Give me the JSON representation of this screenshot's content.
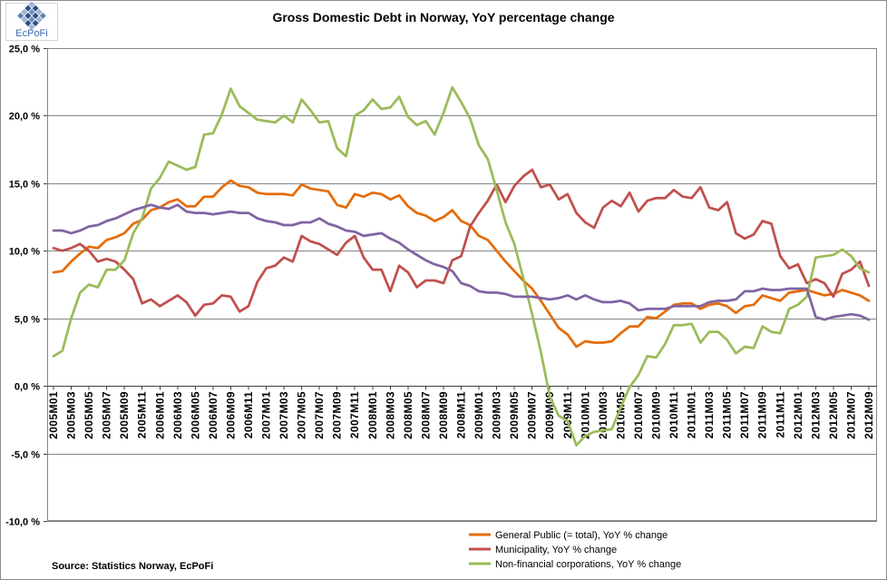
{
  "logo": {
    "text": "EcPoFi"
  },
  "source": "Source: Statistics Norway, EcPoFi",
  "chart_data": {
    "type": "line",
    "title": "Gross Domestic Debt in Norway, YoY percentage change",
    "ylim": [
      -10,
      25
    ],
    "y_step": 5,
    "y_tick_labels": [
      "25,0 %",
      "20,0 %",
      "15,0 %",
      "10,0 %",
      "5,0 %",
      "0,0 %",
      "-5,0 %",
      "-10,0 %"
    ],
    "months_per_label": 2,
    "x_labels": [
      "2005M01",
      "2005M03",
      "2005M05",
      "2005M07",
      "2005M09",
      "2005M11",
      "2006M01",
      "2006M03",
      "2006M05",
      "2006M07",
      "2006M09",
      "2006M11",
      "2007M01",
      "2007M03",
      "2007M05",
      "2007M07",
      "2007M09",
      "2007M11",
      "2008M01",
      "2008M03",
      "2008M05",
      "2008M07",
      "2008M09",
      "2008M11",
      "2009M01",
      "2009M03",
      "2009M05",
      "2009M07",
      "2009M09",
      "2009M11",
      "2010M01",
      "2010M03",
      "2010M05",
      "2010M07",
      "2010M09",
      "2010M11",
      "2011M01",
      "2011M03",
      "2011M05",
      "2011M07",
      "2011M09",
      "2011M11",
      "2012M01",
      "2012M03",
      "2012M05",
      "2012M07",
      "2012M09"
    ],
    "grid": true,
    "legend_position": "bottom",
    "series": [
      {
        "name": "General Public (= total), YoY % change",
        "color": "#E46C0A",
        "values": [
          8.4,
          8.5,
          9.2,
          9.8,
          10.3,
          10.2,
          10.8,
          11.0,
          11.3,
          12.0,
          12.3,
          13.0,
          13.2,
          13.6,
          13.8,
          13.3,
          13.3,
          14.0,
          14.0,
          14.7,
          15.2,
          14.8,
          14.7,
          14.3,
          14.2,
          14.2,
          14.2,
          14.1,
          14.9,
          14.6,
          14.5,
          14.4,
          13.4,
          13.2,
          14.2,
          14.0,
          14.3,
          14.2,
          13.8,
          14.1,
          13.3,
          12.8,
          12.6,
          12.2,
          12.5,
          13.0,
          12.2,
          11.9,
          11.1,
          10.8,
          10.0,
          9.2,
          8.5,
          7.8,
          7.2,
          6.3,
          5.3,
          4.3,
          3.8,
          2.9,
          3.3,
          3.2,
          3.2,
          3.3,
          3.9,
          4.4,
          4.4,
          5.1,
          5.0,
          5.5,
          6.0,
          6.1,
          6.1,
          5.7,
          6.0,
          6.1,
          5.9,
          5.4,
          5.9,
          6.0,
          6.7,
          6.5,
          6.3,
          6.9,
          7.0,
          7.1,
          6.9,
          6.7,
          6.8,
          7.1,
          6.9,
          6.7,
          6.3
        ]
      },
      {
        "name": "Municipality, YoY % change",
        "color": "#C0504D",
        "values": [
          10.2,
          10.0,
          10.2,
          10.5,
          10.0,
          9.2,
          9.4,
          9.2,
          8.6,
          7.9,
          6.1,
          6.4,
          5.9,
          6.3,
          6.7,
          6.2,
          5.2,
          6.0,
          6.1,
          6.7,
          6.6,
          5.5,
          5.9,
          7.7,
          8.7,
          8.9,
          9.5,
          9.2,
          11.1,
          10.7,
          10.5,
          10.1,
          9.7,
          10.6,
          11.1,
          9.5,
          8.6,
          8.6,
          7.0,
          8.9,
          8.4,
          7.3,
          7.8,
          7.8,
          7.6,
          9.3,
          9.6,
          11.8,
          12.8,
          13.7,
          14.9,
          13.6,
          14.8,
          15.5,
          16.0,
          14.7,
          14.9,
          13.8,
          14.2,
          12.8,
          12.1,
          11.7,
          13.2,
          13.7,
          13.3,
          14.3,
          12.9,
          13.7,
          13.9,
          13.9,
          14.5,
          14.0,
          13.9,
          14.7,
          13.2,
          13.0,
          13.6,
          11.3,
          10.9,
          11.2,
          12.2,
          12.0,
          9.6,
          8.7,
          9.0,
          7.6,
          7.9,
          7.6,
          6.6,
          8.3,
          8.6,
          9.2,
          7.4
        ]
      },
      {
        "name": "Non-financial corporations, YoY % change",
        "color": "#9BBB59",
        "values": [
          2.2,
          2.6,
          5.0,
          6.9,
          7.5,
          7.3,
          8.6,
          8.6,
          9.3,
          11.3,
          12.4,
          14.6,
          15.4,
          16.6,
          16.3,
          16.0,
          16.2,
          18.6,
          18.7,
          20.1,
          22.0,
          20.7,
          20.2,
          19.7,
          19.6,
          19.5,
          20.0,
          19.5,
          21.2,
          20.4,
          19.5,
          19.6,
          17.6,
          17.0,
          20.0,
          20.4,
          21.2,
          20.5,
          20.6,
          21.4,
          19.9,
          19.3,
          19.6,
          18.6,
          20.2,
          22.1,
          21.0,
          19.8,
          17.8,
          16.8,
          14.5,
          12.1,
          10.5,
          8.0,
          5.3,
          2.5,
          -0.8,
          -2.2,
          -2.6,
          -4.4,
          -3.7,
          -3.4,
          -3.3,
          -3.2,
          -1.6,
          -0.1,
          0.8,
          2.2,
          2.1,
          3.1,
          4.5,
          4.5,
          4.6,
          3.2,
          4.0,
          4.0,
          3.4,
          2.4,
          2.9,
          2.8,
          4.4,
          4.0,
          3.9,
          5.7,
          6.0,
          6.6,
          9.5,
          9.6,
          9.7,
          10.1,
          9.6,
          8.7,
          8.4
        ]
      },
      {
        "color": "#8064A2",
        "values": [
          11.5,
          11.5,
          11.3,
          11.5,
          11.8,
          11.9,
          12.2,
          12.4,
          12.7,
          13.0,
          13.2,
          13.4,
          13.2,
          13.1,
          13.4,
          12.9,
          12.8,
          12.8,
          12.7,
          12.8,
          12.9,
          12.8,
          12.8,
          12.4,
          12.2,
          12.1,
          11.9,
          11.9,
          12.1,
          12.1,
          12.4,
          12.0,
          11.8,
          11.5,
          11.4,
          11.1,
          11.2,
          11.3,
          10.9,
          10.6,
          10.1,
          9.7,
          9.3,
          9.0,
          8.8,
          8.5,
          7.6,
          7.4,
          7.0,
          6.9,
          6.9,
          6.8,
          6.6,
          6.6,
          6.6,
          6.5,
          6.4,
          6.5,
          6.7,
          6.4,
          6.7,
          6.4,
          6.2,
          6.2,
          6.3,
          6.1,
          5.6,
          5.7,
          5.7,
          5.7,
          5.9,
          5.9,
          5.9,
          5.9,
          6.2,
          6.3,
          6.3,
          6.4,
          7.0,
          7.0,
          7.2,
          7.1,
          7.1,
          7.2,
          7.2,
          7.2,
          5.1,
          4.9,
          5.1,
          5.2,
          5.3,
          5.2,
          4.9
        ]
      }
    ]
  }
}
